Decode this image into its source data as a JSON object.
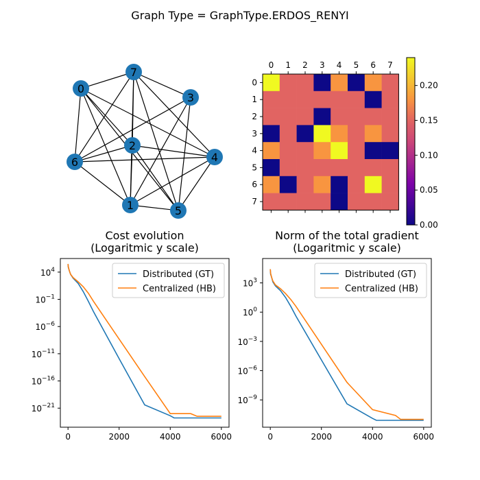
{
  "figure": {
    "title": "Graph Type = GraphType.ERDOS_RENYI"
  },
  "colors": {
    "node": "#1f77b4",
    "edge": "#000000",
    "distributed": "#1f77b4",
    "centralized": "#ff7f0e",
    "heatmap_colormap": "plasma"
  },
  "chart_data": [
    {
      "type": "network",
      "nodes": [
        "0",
        "1",
        "2",
        "3",
        "4",
        "5",
        "6",
        "7"
      ],
      "edges": [
        [
          0,
          7
        ],
        [
          0,
          6
        ],
        [
          0,
          2
        ],
        [
          0,
          1
        ],
        [
          0,
          5
        ],
        [
          0,
          4
        ],
        [
          7,
          6
        ],
        [
          7,
          2
        ],
        [
          7,
          1
        ],
        [
          7,
          5
        ],
        [
          7,
          3
        ],
        [
          7,
          4
        ],
        [
          6,
          2
        ],
        [
          6,
          1
        ],
        [
          6,
          3
        ],
        [
          6,
          4
        ],
        [
          2,
          1
        ],
        [
          2,
          5
        ],
        [
          2,
          4
        ],
        [
          3,
          1
        ],
        [
          3,
          5
        ],
        [
          4,
          1
        ],
        [
          4,
          5
        ],
        [
          1,
          5
        ]
      ]
    },
    {
      "type": "heatmap",
      "x_tick_labels": [
        "0",
        "1",
        "2",
        "3",
        "4",
        "5",
        "6",
        "7"
      ],
      "y_tick_labels": [
        "0",
        "1",
        "2",
        "3",
        "4",
        "5",
        "6",
        "7"
      ],
      "colorbar_ticks": [
        "0.00",
        "0.05",
        "0.10",
        "0.15",
        "0.20"
      ],
      "colorbar_range": [
        0,
        0.24
      ],
      "matrix": [
        [
          0.24,
          0.15,
          0.15,
          0.0,
          0.18,
          0.0,
          0.18,
          0.15
        ],
        [
          0.15,
          0.15,
          0.15,
          0.15,
          0.15,
          0.15,
          0.0,
          0.15
        ],
        [
          0.15,
          0.15,
          0.15,
          0.0,
          0.15,
          0.15,
          0.15,
          0.15
        ],
        [
          0.0,
          0.15,
          0.0,
          0.24,
          0.18,
          0.15,
          0.18,
          0.15
        ],
        [
          0.18,
          0.15,
          0.15,
          0.18,
          0.24,
          0.15,
          0.0,
          0.0
        ],
        [
          0.0,
          0.15,
          0.15,
          0.15,
          0.15,
          0.15,
          0.15,
          0.15
        ],
        [
          0.18,
          0.0,
          0.15,
          0.18,
          0.0,
          0.15,
          0.24,
          0.15
        ],
        [
          0.15,
          0.15,
          0.15,
          0.15,
          0.0,
          0.15,
          0.15,
          0.15
        ]
      ]
    },
    {
      "type": "line",
      "title": "Cost evolution\n(Logaritmic y scale)",
      "yscale": "log",
      "xlim": [
        -300,
        6300
      ],
      "ylim_log10": [
        -24.5,
        6.5
      ],
      "x_ticks": [
        "0",
        "2000",
        "4000",
        "6000"
      ],
      "y_ticks": [
        {
          "base": "10",
          "exp": "4",
          "value": 4
        },
        {
          "base": "10",
          "exp": "−1",
          "value": -1
        },
        {
          "base": "10",
          "exp": "−6",
          "value": -6
        },
        {
          "base": "10",
          "exp": "−11",
          "value": -11
        },
        {
          "base": "10",
          "exp": "−16",
          "value": -16
        },
        {
          "base": "10",
          "exp": "−21",
          "value": -21
        }
      ],
      "legend_position": "upper right",
      "series": [
        {
          "name": "Distributed (GT)",
          "x": [
            0,
            10,
            50,
            100,
            200,
            400,
            600,
            800,
            1000,
            2000,
            3000,
            4000,
            4150,
            5000,
            6000
          ],
          "log10_y": [
            5.5,
            4.9,
            4.3,
            3.6,
            2.9,
            1.9,
            0.4,
            -1.4,
            -3.3,
            -11.9,
            -20.4,
            -22.4,
            -22.8,
            -22.8,
            -22.8
          ]
        },
        {
          "name": "Centralized (HB)",
          "x": [
            0,
            10,
            50,
            100,
            200,
            400,
            600,
            800,
            1000,
            2000,
            3000,
            4000,
            4800,
            5050,
            5100,
            6000
          ],
          "log10_y": [
            5.5,
            5.0,
            4.3,
            3.6,
            3.0,
            2.2,
            1.3,
            0.1,
            -1.4,
            -8.3,
            -15.2,
            -22.0,
            -22.0,
            -22.5,
            -22.5,
            -22.5
          ]
        }
      ]
    },
    {
      "type": "line",
      "title": "Norm of the total gradient\n(Logaritmic y scale)",
      "yscale": "log",
      "xlim": [
        -300,
        6300
      ],
      "ylim_log10": [
        -11.8,
        5.5
      ],
      "x_ticks": [
        "0",
        "2000",
        "4000",
        "6000"
      ],
      "y_ticks": [
        {
          "base": "10",
          "exp": "3",
          "value": 3
        },
        {
          "base": "10",
          "exp": "0",
          "value": 0
        },
        {
          "base": "10",
          "exp": "−3",
          "value": -3
        },
        {
          "base": "10",
          "exp": "−6",
          "value": -6
        },
        {
          "base": "10",
          "exp": "−9",
          "value": -9
        }
      ],
      "legend_position": "upper right",
      "series": [
        {
          "name": "Distributed (GT)",
          "x": [
            0,
            10,
            50,
            100,
            200,
            400,
            600,
            800,
            1000,
            2000,
            3000,
            4000,
            4150,
            5000,
            6000
          ],
          "log10_y": [
            4.4,
            3.9,
            3.6,
            3.1,
            2.7,
            2.2,
            1.5,
            0.6,
            -0.4,
            -4.9,
            -9.4,
            -10.9,
            -11.1,
            -11.1,
            -11.1
          ]
        },
        {
          "name": "Centralized (HB)",
          "x": [
            0,
            10,
            50,
            100,
            200,
            400,
            600,
            800,
            1000,
            2000,
            3000,
            4000,
            4900,
            5100,
            6000
          ],
          "log10_y": [
            4.4,
            4.0,
            3.6,
            3.2,
            2.8,
            2.4,
            1.9,
            1.3,
            0.6,
            -3.3,
            -7.2,
            -10.0,
            -10.6,
            -11.0,
            -11.0
          ]
        }
      ]
    }
  ]
}
